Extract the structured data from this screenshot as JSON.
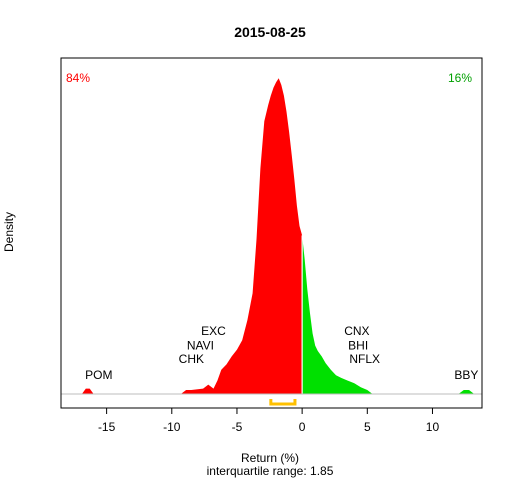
{
  "chart_data": {
    "type": "area",
    "title": "2015-08-25",
    "xlabel": "Return (%)",
    "ylabel": "Density",
    "subtitle": "interquartile range: 1.85",
    "xlim": [
      -18.5,
      13.8
    ],
    "ylim": [
      0,
      0.25
    ],
    "xticks": [
      -15,
      -10,
      -5,
      0,
      5,
      10
    ],
    "negative_pct_label": "84%",
    "positive_pct_label": "16%",
    "colors": {
      "negative": "#ff0000",
      "positive": "#00e000",
      "iqr": "#ffc000",
      "zero_line": "#ffffff",
      "baseline": "#bebebe"
    },
    "interquartile_range": [
      -2.4,
      -0.55
    ],
    "density": {
      "x": [
        -16.9,
        -16.6,
        -16.3,
        -16.0,
        -9.3,
        -8.9,
        -8.5,
        -7.6,
        -7.2,
        -6.8,
        -6.5,
        -6.2,
        -5.8,
        -5.4,
        -5.0,
        -4.6,
        -4.2,
        -3.8,
        -3.5,
        -3.2,
        -2.9,
        -2.6,
        -2.4,
        -2.2,
        -2.0,
        -1.8,
        -1.6,
        -1.4,
        -1.2,
        -1.0,
        -0.8,
        -0.6,
        -0.4,
        -0.2,
        0.0,
        0.2,
        0.4,
        0.6,
        0.8,
        1.0,
        1.2,
        1.5,
        1.8,
        2.2,
        2.6,
        3.0,
        3.5,
        4.0,
        4.5,
        5.0,
        5.4,
        12.0,
        12.4,
        12.8,
        13.2
      ],
      "y": [
        0.0,
        0.004,
        0.004,
        0.0,
        0.0,
        0.003,
        0.003,
        0.004,
        0.007,
        0.004,
        0.01,
        0.018,
        0.022,
        0.028,
        0.033,
        0.04,
        0.055,
        0.075,
        0.115,
        0.168,
        0.203,
        0.215,
        0.222,
        0.228,
        0.232,
        0.235,
        0.23,
        0.222,
        0.21,
        0.195,
        0.178,
        0.16,
        0.14,
        0.125,
        0.118,
        0.1,
        0.078,
        0.06,
        0.045,
        0.036,
        0.032,
        0.028,
        0.023,
        0.018,
        0.014,
        0.012,
        0.01,
        0.008,
        0.005,
        0.003,
        0.0,
        0.0,
        0.003,
        0.003,
        0.0
      ]
    },
    "annotations": [
      {
        "text": "POM",
        "x": -15.6,
        "y": 0.011
      },
      {
        "text": "CHK",
        "x": -8.5,
        "y": 0.023
      },
      {
        "text": "NAVI",
        "x": -7.8,
        "y": 0.033
      },
      {
        "text": "EXC",
        "x": -6.8,
        "y": 0.044
      },
      {
        "text": "CNX",
        "x": 4.2,
        "y": 0.044
      },
      {
        "text": "BHI",
        "x": 4.3,
        "y": 0.033
      },
      {
        "text": "NFLX",
        "x": 4.8,
        "y": 0.023
      },
      {
        "text": "BBY",
        "x": 12.6,
        "y": 0.011
      }
    ]
  }
}
